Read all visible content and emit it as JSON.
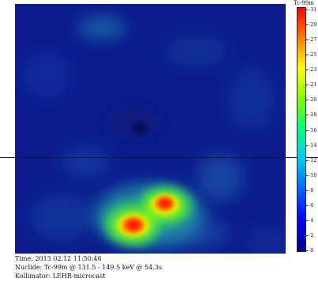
{
  "colorbar": {
    "title": "Tc-99m",
    "ticks": [
      "-0",
      "-2",
      "-4",
      "-6",
      "-8",
      "-10",
      "-12",
      "-14",
      "-16",
      "-18",
      "-20",
      "-21",
      "-23",
      "-25",
      "-27",
      "-29",
      "-31"
    ],
    "gradient": [
      "#00008c",
      "#0000ff",
      "#0060ff",
      "#00c8ff",
      "#00ff80",
      "#80ff00",
      "#ffff00",
      "#ff8000",
      "#ff0000"
    ]
  },
  "info": {
    "time": "Time: 2013 02.12 11:50:46",
    "nuclide": "Nuclide: Tc-99m @ 131.5 - 149.5 keV @ 54.3s",
    "kollimator": "Kollimator: LEHR-microcast"
  },
  "colors": {
    "background_blue": "#0a1f8c",
    "crosshair": "#1a1a1a"
  }
}
